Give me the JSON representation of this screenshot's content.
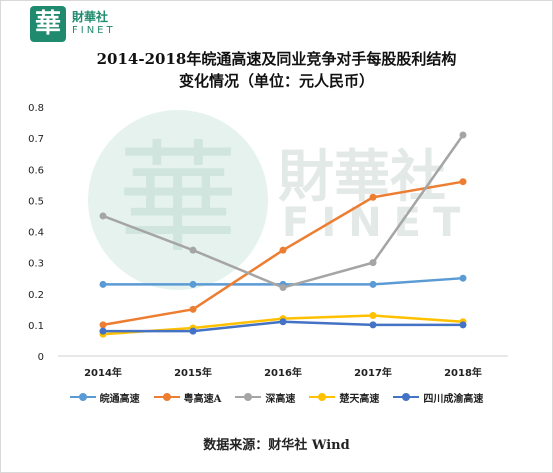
{
  "logo": {
    "glyph": "華",
    "cn": "財華社",
    "en": "FINET"
  },
  "watermark": {
    "glyph": "華",
    "cn": "財華社",
    "en": "FINET"
  },
  "title_line1": "2014-2018年皖通高速及同业竞争对手每股股利结构",
  "title_line2": "变化情况（单位：元人民币）",
  "source": "数据来源：财华社 Wind",
  "chart_data": {
    "type": "line",
    "title": "2014-2018年皖通高速及同业竞争对手每股股利结构变化情况（单位：元人民币）",
    "categories": [
      "2014年",
      "2015年",
      "2016年",
      "2017年",
      "2018年"
    ],
    "ylim": [
      0,
      0.8
    ],
    "yticks": [
      "0",
      "0.1",
      "0.2",
      "0.3",
      "0.4",
      "0.5",
      "0.6",
      "0.7",
      "0.8"
    ],
    "grid": false,
    "legend_position": "bottom",
    "series": [
      {
        "name": "皖通高速",
        "color": "#5b9bd5",
        "values": [
          0.23,
          0.23,
          0.23,
          0.23,
          0.25
        ]
      },
      {
        "name": "粤高速A",
        "color": "#ed7d31",
        "values": [
          0.1,
          0.15,
          0.34,
          0.51,
          0.56
        ]
      },
      {
        "name": "深高速",
        "color": "#a5a5a5",
        "values": [
          0.45,
          0.34,
          0.22,
          0.3,
          0.71
        ]
      },
      {
        "name": "楚天高速",
        "color": "#ffc000",
        "values": [
          0.07,
          0.09,
          0.12,
          0.13,
          0.11
        ]
      },
      {
        "name": "四川成渝高速",
        "color": "#4472c4",
        "values": [
          0.08,
          0.08,
          0.11,
          0.1,
          0.1
        ]
      }
    ]
  }
}
